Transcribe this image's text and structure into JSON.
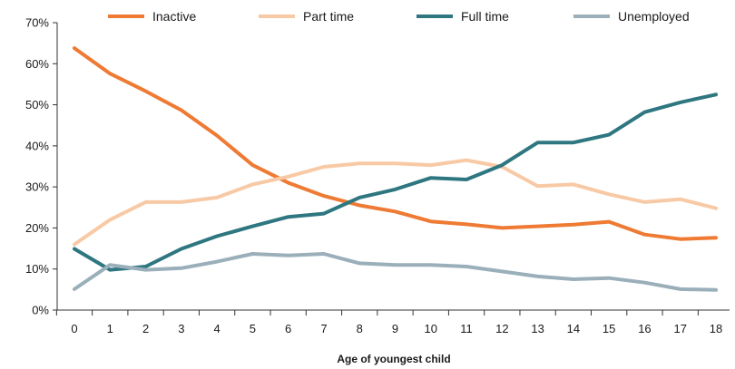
{
  "chart_data": {
    "type": "line",
    "title": "",
    "xlabel": "Age of youngest child",
    "ylabel": "",
    "x": [
      0,
      1,
      2,
      3,
      4,
      5,
      6,
      7,
      8,
      9,
      10,
      11,
      12,
      13,
      14,
      15,
      16,
      17,
      18
    ],
    "ylim": [
      0,
      70
    ],
    "y_ticks": [
      0,
      10,
      20,
      30,
      40,
      50,
      60,
      70
    ],
    "y_tick_labels": [
      "0%",
      "10%",
      "20%",
      "30%",
      "40%",
      "50%",
      "60%",
      "70%"
    ],
    "x_tick_labels": [
      "0",
      "1",
      "2",
      "3",
      "4",
      "5",
      "6",
      "7",
      "8",
      "9",
      "10",
      "11",
      "12",
      "13",
      "14",
      "15",
      "16",
      "17",
      "18"
    ],
    "grid": false,
    "legend_position": "top",
    "series": [
      {
        "name": "Inactive",
        "color": "#ee7a33",
        "values": [
          63.8,
          57.6,
          53.3,
          48.7,
          42.5,
          35.3,
          31.0,
          27.8,
          25.5,
          24.0,
          21.6,
          20.9,
          20.0,
          20.4,
          20.8,
          21.5,
          18.4,
          17.3,
          17.6
        ]
      },
      {
        "name": "Part time",
        "color": "#f8c9a5",
        "values": [
          16.0,
          22.0,
          26.3,
          26.3,
          27.4,
          30.6,
          32.5,
          34.9,
          35.7,
          35.7,
          35.3,
          36.5,
          34.9,
          30.2,
          30.6,
          28.2,
          26.3,
          27.0,
          24.8
        ]
      },
      {
        "name": "Full time",
        "color": "#2e7680",
        "values": [
          14.9,
          9.8,
          10.6,
          14.9,
          18.0,
          20.4,
          22.7,
          23.5,
          27.4,
          29.4,
          32.2,
          31.8,
          35.3,
          40.8,
          40.8,
          42.7,
          48.2,
          50.6,
          52.5
        ]
      },
      {
        "name": "Unemployed",
        "color": "#9aafba",
        "values": [
          5.1,
          11.0,
          9.8,
          10.2,
          11.8,
          13.7,
          13.3,
          13.7,
          11.4,
          11.0,
          11.0,
          10.6,
          9.4,
          8.2,
          7.5,
          7.8,
          6.7,
          5.1,
          4.9
        ]
      }
    ]
  }
}
